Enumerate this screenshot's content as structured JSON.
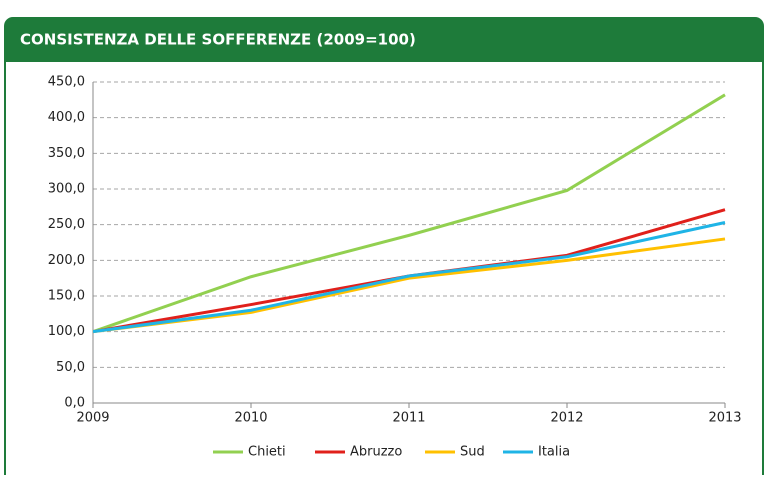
{
  "chart_data": {
    "type": "line",
    "title": "CONSISTENZA DELLE SOFFERENZE (2009=100)",
    "x": [
      2009,
      2010,
      2011,
      2012,
      2013
    ],
    "xlim": [
      2009,
      2013
    ],
    "xticks": [
      2009,
      2010,
      2011,
      2012,
      2013
    ],
    "ylim": [
      0,
      450
    ],
    "yticks": [
      {
        "value": 0,
        "label": "0,0"
      },
      {
        "value": 50,
        "label": "50,0"
      },
      {
        "value": 100,
        "label": "100,0"
      },
      {
        "value": 150,
        "label": "150,0"
      },
      {
        "value": 200,
        "label": "200,0"
      },
      {
        "value": 250,
        "label": "250,0"
      },
      {
        "value": 300,
        "label": "300,0"
      },
      {
        "value": 350,
        "label": "350,0"
      },
      {
        "value": 400,
        "label": "400,0"
      },
      {
        "value": 450,
        "label": "450,0"
      }
    ],
    "grid": true,
    "legend": "bottom",
    "series": [
      {
        "name": "Chieti",
        "color": "#92d050",
        "values": [
          100,
          177,
          235,
          298,
          432
        ]
      },
      {
        "name": "Abruzzo",
        "color": "#e0201b",
        "values": [
          100,
          138,
          178,
          207,
          271
        ]
      },
      {
        "name": "Sud",
        "color": "#ffc000",
        "values": [
          100,
          127,
          175,
          200,
          230
        ]
      },
      {
        "name": "Italia",
        "color": "#1fb4e6",
        "values": [
          100,
          130,
          178,
          205,
          253
        ]
      }
    ]
  }
}
